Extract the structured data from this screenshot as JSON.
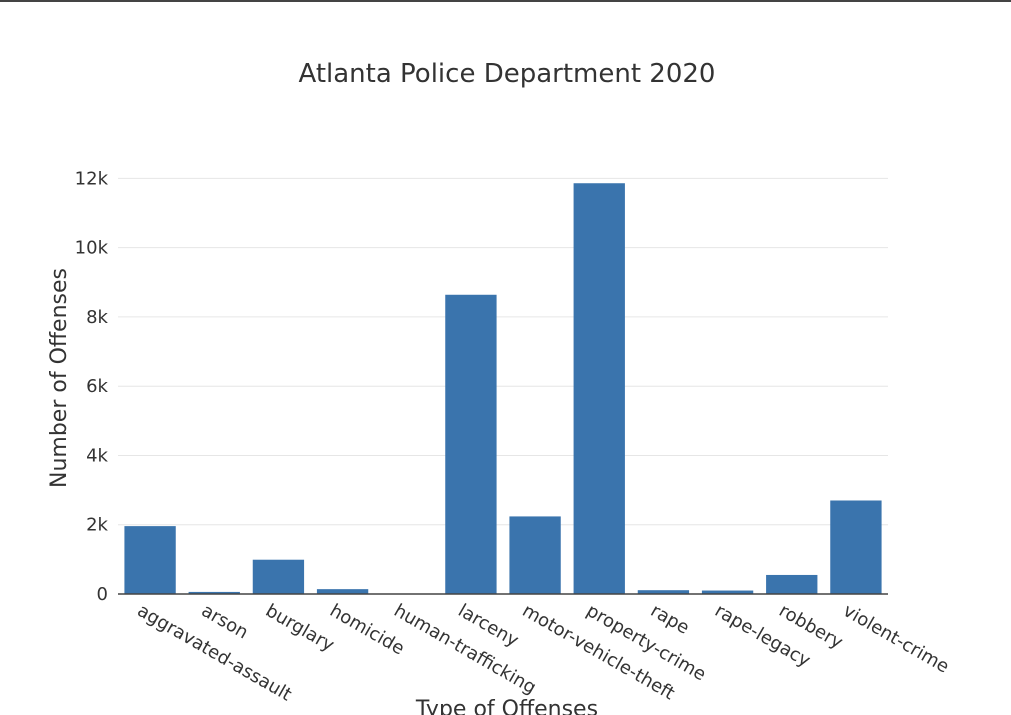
{
  "chart_data": {
    "type": "bar",
    "title": "Atlanta Police Department 2020",
    "xlabel": "Type of Offenses",
    "ylabel": "Number of Offenses",
    "ylim": [
      0,
      12300
    ],
    "yticks": [
      0,
      2000,
      4000,
      6000,
      8000,
      10000,
      12000
    ],
    "ytick_labels": [
      "0",
      "2k",
      "4k",
      "6k",
      "8k",
      "10k",
      "12k"
    ],
    "grid": true,
    "bar_color": "#3a74ad",
    "categories": [
      "aggravated-assault",
      "arson",
      "burglary",
      "homicide",
      "human-trafficking",
      "larceny",
      "motor-vehicle-theft",
      "property-crime",
      "rape",
      "rape-legacy",
      "robbery",
      "violent-crime"
    ],
    "values": [
      1960,
      60,
      990,
      140,
      5,
      8640,
      2240,
      11860,
      110,
      100,
      550,
      2700
    ]
  }
}
